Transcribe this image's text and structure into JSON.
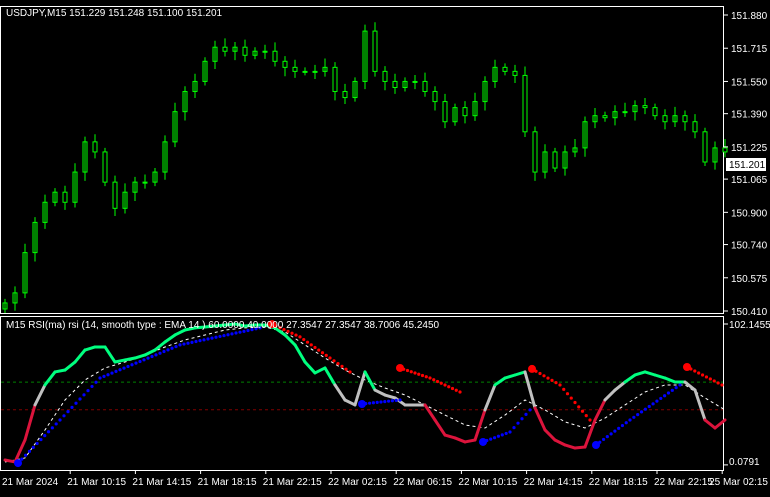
{
  "window": {
    "symbol_title": "USDJPY,M15  151.229 151.248 151.100 151.201",
    "indicator_title": "M15 RSI(ma) rsi (14, smooth type : EMA  14 ) 60.0000 40.0000 27.3547 27.3547 38.7006 45.2450",
    "current_price_label": "151.201"
  },
  "colors": {
    "background": "#000000",
    "frame": "#ffffff",
    "candle": "#00ff00",
    "rsi_up": "#00ff7f",
    "rsi_mid": "#c0c0c0",
    "rsi_down": "#dc143c",
    "signal": "#ffffff",
    "dots_up": "#0000ff",
    "dots_down": "#ff0000",
    "level_high": "#008000",
    "level_low": "#800000"
  },
  "chart_data": [
    {
      "type": "candlestick",
      "title": "USDJPY,M15",
      "ylim": [
        150.41,
        151.88
      ],
      "y_ticks": [
        "151.880",
        "151.715",
        "151.550",
        "151.390",
        "151.225",
        "151.065",
        "150.900",
        "150.740",
        "150.575",
        "150.410"
      ],
      "x_ticks": [
        "21 Mar 2024",
        "21 Mar 10:15",
        "21 Mar 14:15",
        "21 Mar 18:15",
        "21 Mar 22:15",
        "22 Mar 02:15",
        "22 Mar 06:15",
        "22 Mar 10:15",
        "22 Mar 14:15",
        "22 Mar 18:15",
        "22 Mar 22:15",
        "25 Mar 02:15"
      ],
      "closes": [
        150.45,
        150.5,
        150.7,
        150.85,
        150.95,
        151.0,
        150.95,
        151.1,
        151.25,
        151.2,
        151.05,
        150.92,
        151.0,
        151.05,
        151.05,
        151.1,
        151.25,
        151.4,
        151.5,
        151.55,
        151.65,
        151.72,
        151.7,
        151.72,
        151.68,
        151.7,
        151.7,
        151.65,
        151.62,
        151.6,
        151.6,
        151.6,
        151.62,
        151.5,
        151.47,
        151.55,
        151.8,
        151.6,
        151.55,
        151.52,
        151.55,
        151.55,
        151.5,
        151.45,
        151.35,
        151.42,
        151.38,
        151.45,
        151.55,
        151.62,
        151.6,
        151.58,
        151.3,
        151.1,
        151.2,
        151.12,
        151.2,
        151.22,
        151.35,
        151.38,
        151.37,
        151.4,
        151.4,
        151.43,
        151.42,
        151.38,
        151.35,
        151.38,
        151.35,
        151.3,
        151.15,
        151.22,
        151.2
      ],
      "last": {
        "open": 151.229,
        "high": 151.248,
        "low": 151.1,
        "close": 151.201
      }
    },
    {
      "type": "line",
      "title": "RSI(ma) rsi (14, smooth type : EMA  14 )",
      "ylim": [
        0,
        102.1455
      ],
      "y_ticks": [
        "102.1455",
        "0.0791"
      ],
      "levels": [
        60,
        40
      ],
      "rsi": [
        3.6,
        2.2,
        18.1,
        43.5,
        58,
        67.4,
        68.8,
        74.6,
        83.3,
        85.5,
        85.5,
        74.6,
        76.1,
        77.5,
        79.7,
        83.3,
        89.1,
        94.2,
        97.8,
        99.3,
        100,
        100.7,
        101.4,
        102.1,
        100.7,
        101.4,
        101.4,
        99.3,
        94.2,
        87,
        74.6,
        66.7,
        70.3,
        58,
        47.1,
        43.5,
        67.4,
        54.3,
        50.7,
        48.6,
        43.5,
        43.5,
        43.5,
        32.6,
        21.7,
        19.6,
        16.7,
        18.1,
        39.9,
        58,
        63,
        65.2,
        67.4,
        41.3,
        25.4,
        18.1,
        14.5,
        12.3,
        13,
        32.6,
        47.1,
        54.3,
        60.1,
        65.2,
        67.4,
        65.2,
        63,
        60.1,
        60.1,
        54.3,
        32.6,
        26.8,
        32.6
      ],
      "signal_every_2nd_bar": [
        2.2,
        5.1,
        25.4,
        47.1,
        61.6,
        70.3,
        74.6,
        79.7,
        85.5,
        90.6,
        94.2,
        97.8,
        99.3,
        100,
        96.4,
        87,
        77.5,
        68.8,
        61.6,
        55.8,
        50.7,
        43.5,
        36.2,
        29,
        26.8,
        36.2,
        47.1,
        39.9,
        31.2,
        26.8,
        34,
        43.5,
        52.9,
        58,
        58,
        48.6,
        39.9
      ],
      "dotted_segments": [
        {
          "color": "up",
          "points": [
            [
              1.3,
              1.4
            ],
            [
              5.5,
              32.6
            ],
            [
              9.5,
              63
            ],
            [
              17.5,
              87
            ],
            [
              25.5,
              99.3
            ]
          ]
        },
        {
          "color": "down",
          "points": [
            [
              26.7,
              102.1
            ],
            [
              29.5,
              92.8
            ],
            [
              32.5,
              77.5
            ],
            [
              34.5,
              67.4
            ]
          ]
        },
        {
          "color": "up",
          "points": [
            [
              35.7,
              44.2
            ],
            [
              39.5,
              47.1
            ]
          ]
        },
        {
          "color": "down",
          "points": [
            [
              39.5,
              70.3
            ],
            [
              42.5,
              63
            ],
            [
              45.5,
              52.9
            ]
          ]
        },
        {
          "color": "up",
          "points": [
            [
              47.8,
              16.7
            ],
            [
              50.5,
              23.9
            ],
            [
              52.5,
              39.9
            ]
          ]
        },
        {
          "color": "down",
          "points": [
            [
              52.7,
              69.6
            ],
            [
              55.5,
              58
            ],
            [
              58.5,
              32.6
            ]
          ]
        },
        {
          "color": "up",
          "points": [
            [
              59.1,
              14.5
            ],
            [
              62.5,
              32.6
            ],
            [
              67.5,
              58
            ]
          ]
        },
        {
          "color": "down",
          "points": [
            [
              68.2,
              71
            ],
            [
              71.7,
              58
            ]
          ]
        }
      ]
    }
  ]
}
